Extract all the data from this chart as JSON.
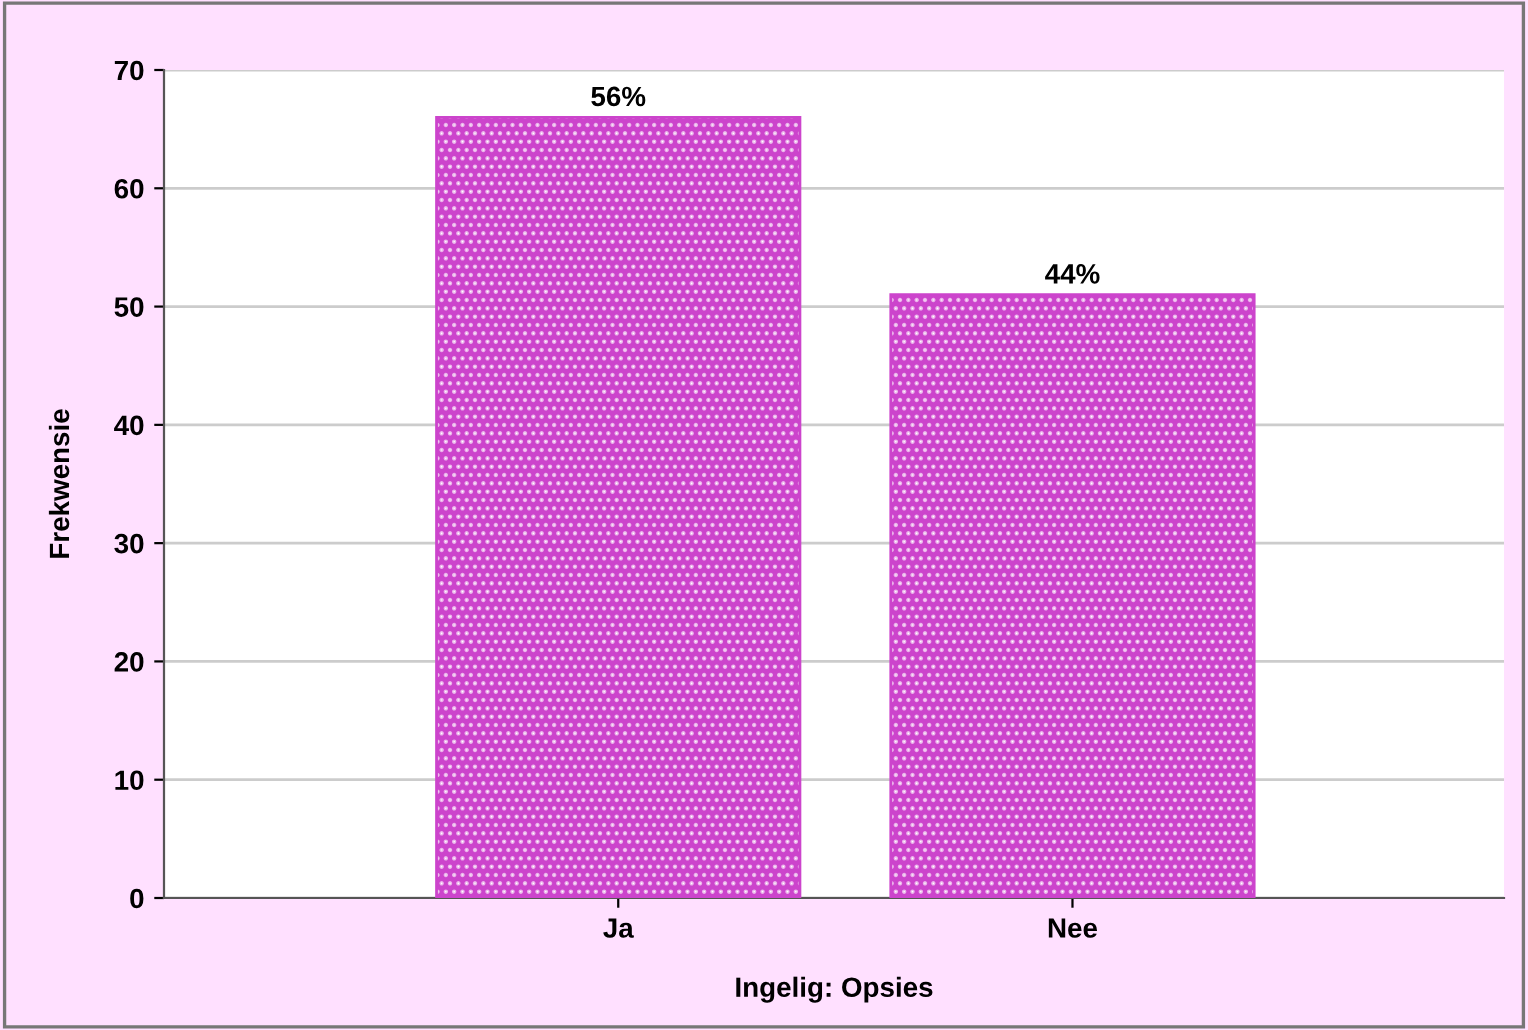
{
  "chart_data": {
    "type": "bar",
    "xlabel": "Ingelig: Opsies",
    "ylabel": "Frekwensie",
    "categories": [
      "Ja",
      "Nee"
    ],
    "values": [
      66,
      51
    ],
    "annotations": [
      {
        "text": "56%",
        "x": "Ja",
        "y": 66
      },
      {
        "text": "44%",
        "x": "Nee",
        "y": 51
      }
    ],
    "color": "#cc44cc",
    "ylim": [
      0,
      70
    ],
    "yticks": [
      0,
      10,
      20,
      30,
      40,
      50,
      60,
      70
    ],
    "grid": "y",
    "legend": false
  }
}
